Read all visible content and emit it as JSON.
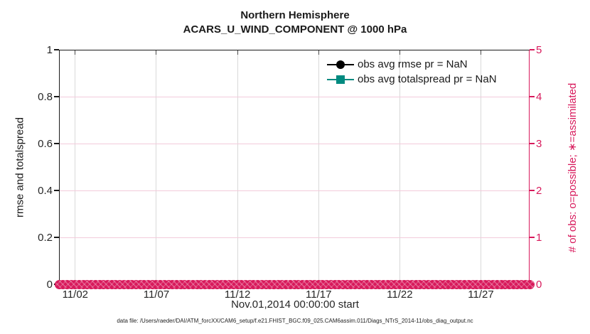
{
  "title": {
    "line1": "Northern Hemisphere",
    "line2": "ACARS_U_WIND_COMPONENT @ 1000 hPa"
  },
  "left_axis": {
    "label": "rmse and totalspread",
    "ticks": [
      "0",
      "0.2",
      "0.4",
      "0.6",
      "0.8",
      "1"
    ],
    "min": 0,
    "max": 1
  },
  "right_axis": {
    "label": "# of obs: o=possible; ∗=assimilated",
    "ticks": [
      "0",
      "1",
      "2",
      "3",
      "4",
      "5"
    ],
    "min": 0,
    "max": 5
  },
  "x_axis": {
    "label": "Nov.01,2014 00:00:00 start",
    "ticks": [
      "11/02",
      "11/07",
      "11/12",
      "11/17",
      "11/22",
      "11/27"
    ],
    "tick_days": [
      1,
      6,
      11,
      16,
      21,
      26
    ],
    "range_days": [
      0,
      29
    ]
  },
  "legend": [
    {
      "label": "obs avg rmse pr = NaN",
      "marker": "circle",
      "color": "#000000"
    },
    {
      "label": "obs avg totalspread pr = NaN",
      "marker": "square",
      "color": "#008a80"
    }
  ],
  "caption": "data file: /Users/raeder/DAI/ATM_forcXX/CAM6_setup/f.e21.FHIST_BGC.f09_025.CAM6assim.011/Diags_NTrS_2014-11/obs_diag_output.nc",
  "colors": {
    "obs_axis": "#d81a5c",
    "obs_grid_light": "#f3cbdb",
    "x_grid_gray": "#d9d9d9",
    "rmse_black": "#000000",
    "totalspread_teal": "#008a80",
    "axis_text": "#262626"
  },
  "chart_data": {
    "type": "line",
    "title": "Northern Hemisphere",
    "subtitle": "ACARS_U_WIND_COMPONENT @ 1000 hPa",
    "xlabel": "Nov.01,2014 00:00:00 start",
    "ylabel_left": "rmse and totalspread",
    "ylabel_right": "# of obs: o=possible; ∗=assimilated",
    "xlim_days": [
      0,
      29
    ],
    "x_tick_days": [
      1,
      6,
      11,
      16,
      21,
      26
    ],
    "x_tick_labels": [
      "11/02",
      "11/07",
      "11/12",
      "11/17",
      "11/22",
      "11/27"
    ],
    "ylim_left": [
      0,
      1
    ],
    "ylim_right": [
      0,
      5
    ],
    "grid": "on",
    "legend_position": "upper-right, no box",
    "series": [
      {
        "name": "obs avg rmse pr = NaN",
        "axis": "left",
        "color": "#000000",
        "marker": "circle",
        "values": "all NaN — no curve drawn"
      },
      {
        "name": "obs avg totalspread pr = NaN",
        "axis": "left",
        "color": "#008a80",
        "marker": "square",
        "values": "all NaN — no curve drawn"
      },
      {
        "name": "# of obs possible (o)",
        "axis": "right",
        "color": "#d81a5c",
        "marker": "o",
        "constant_value": 0,
        "n_points": 117
      },
      {
        "name": "# of obs assimilated (∗)",
        "axis": "right",
        "color": "#d81a5c",
        "marker": "∗",
        "constant_value": 0,
        "n_points": 117
      }
    ]
  }
}
